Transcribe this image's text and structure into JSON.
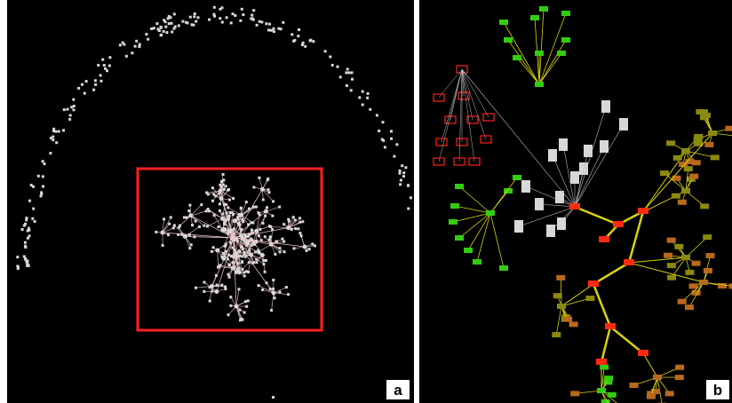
{
  "panels": [
    {
      "label": "a",
      "view": "overview",
      "highlight_color": "#ff2020",
      "node_color": "#d8d8d8",
      "edge_color": "#f0c8c8"
    },
    {
      "label": "b",
      "view": "magnified"
    }
  ],
  "colors": {
    "background": "#000000",
    "node_green": "#33cc11",
    "node_olive": "#8a8a10",
    "node_brown": "#b8691e",
    "node_red": "#ff2a10",
    "node_gray": "#d8d8d8",
    "edge_yellow": "#d7d20f",
    "edge_gray": "#bdbdbd",
    "outline_red": "#ff2020"
  }
}
